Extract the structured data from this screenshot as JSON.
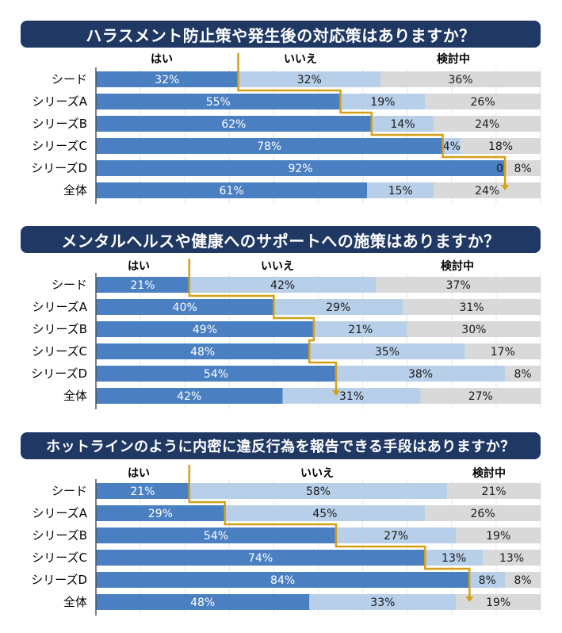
{
  "colors": {
    "banner": "#1f3864",
    "yes": "#4a7fc1",
    "no": "#b8cfe9",
    "consider": "#d9d9d9",
    "step_line": "#d4a017",
    "axis": "#555555"
  },
  "chart_data": [
    {
      "type": "bar",
      "orientation": "horizontal",
      "stacked": "100%",
      "title": "ハラスメント防止策や発生後の対応策はありますか？",
      "legend": [
        "はい",
        "いいえ",
        "検討中"
      ],
      "categories": [
        "シード",
        "シリーズA",
        "シリーズB",
        "シリーズC",
        "シリーズD",
        "全体"
      ],
      "series": [
        {
          "name": "はい",
          "values": [
            32,
            55,
            62,
            78,
            92,
            61
          ]
        },
        {
          "name": "いいえ",
          "values": [
            32,
            19,
            14,
            4,
            0,
            15
          ]
        },
        {
          "name": "検討中",
          "values": [
            36,
            26,
            24,
            18,
            8,
            24
          ]
        }
      ],
      "labels": {
        "はい": [
          "32%",
          "55%",
          "62%",
          "78%",
          "92%",
          "61%"
        ],
        "いいえ": [
          "32%",
          "19%",
          "14%",
          "4%",
          "0%",
          "15%"
        ],
        "検討中": [
          "36%",
          "26%",
          "24%",
          "18%",
          "8%",
          "24%"
        ]
      },
      "xlim": [
        0,
        100
      ]
    },
    {
      "type": "bar",
      "orientation": "horizontal",
      "stacked": "100%",
      "title": "メンタルヘルスや健康へのサポートへの施策はありますか？",
      "legend": [
        "はい",
        "いいえ",
        "検討中"
      ],
      "categories": [
        "シード",
        "シリーズA",
        "シリーズB",
        "シリーズC",
        "シリーズD",
        "全体"
      ],
      "series": [
        {
          "name": "はい",
          "values": [
            21,
            40,
            49,
            48,
            54,
            42
          ]
        },
        {
          "name": "いいえ",
          "values": [
            42,
            29,
            21,
            35,
            38,
            31
          ]
        },
        {
          "name": "検討中",
          "values": [
            37,
            31,
            30,
            17,
            8,
            27
          ]
        }
      ],
      "labels": {
        "はい": [
          "21%",
          "40%",
          "49%",
          "48%",
          "54%",
          "42%"
        ],
        "いいえ": [
          "42%",
          "29%",
          "21%",
          "35%",
          "38%",
          "31%"
        ],
        "検討中": [
          "37%",
          "31%",
          "30%",
          "17%",
          "8%",
          "27%"
        ]
      },
      "xlim": [
        0,
        100
      ]
    },
    {
      "type": "bar",
      "orientation": "horizontal",
      "stacked": "100%",
      "title": "ホットラインのように内密に違反行為を報告できる手段はありますか？",
      "legend": [
        "はい",
        "いいえ",
        "検討中"
      ],
      "categories": [
        "シード",
        "シリーズA",
        "シリーズB",
        "シリーズC",
        "シリーズD",
        "全体"
      ],
      "series": [
        {
          "name": "はい",
          "values": [
            21,
            29,
            54,
            74,
            84,
            48
          ]
        },
        {
          "name": "いいえ",
          "values": [
            58,
            45,
            27,
            13,
            8,
            33
          ]
        },
        {
          "name": "検討中",
          "values": [
            21,
            26,
            19,
            13,
            8,
            19
          ]
        }
      ],
      "labels": {
        "はい": [
          "21%",
          "29%",
          "54%",
          "74%",
          "84%",
          "48%"
        ],
        "いいえ": [
          "58%",
          "45%",
          "27%",
          "13%",
          "8%",
          "33%"
        ],
        "検討中": [
          "21%",
          "26%",
          "19%",
          "13%",
          "8%",
          "19%"
        ]
      },
      "xlim": [
        0,
        100
      ]
    }
  ]
}
